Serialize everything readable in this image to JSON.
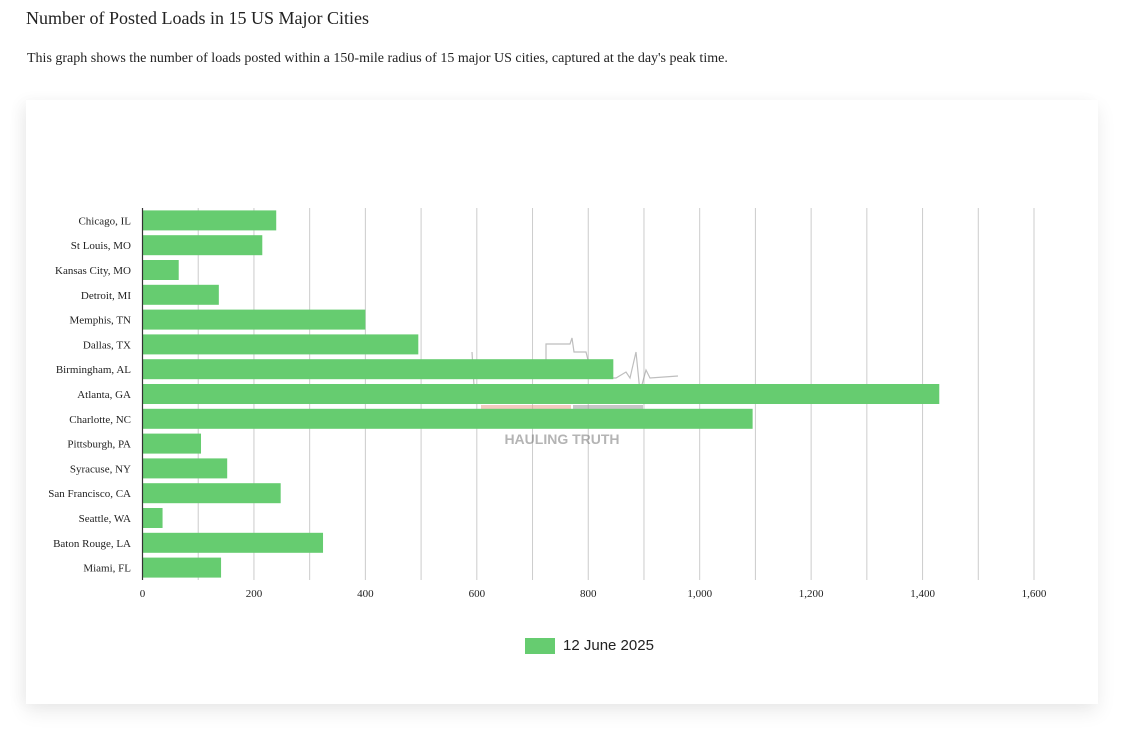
{
  "page": {
    "title": "Number of Posted Loads in 15 US Major Cities",
    "subtitle": "This graph shows the number of loads posted within a 150-mile radius of 15 major US cities, captured at the day's peak time."
  },
  "watermark": {
    "text": "HAULING TRUTH"
  },
  "chart_data": {
    "type": "bar",
    "orientation": "horizontal",
    "title": "",
    "xlabel": "",
    "ylabel": "",
    "categories": [
      "Chicago, IL",
      "St Louis, MO",
      "Kansas City, MO",
      "Detroit, MI",
      "Memphis, TN",
      "Dallas, TX",
      "Birmingham, AL",
      "Atlanta, GA",
      "Charlotte, NC",
      "Pittsburgh, PA",
      "Syracuse, NY",
      "San Francisco, CA",
      "Seattle, WA",
      "Baton Rouge, LA",
      "Miami, FL"
    ],
    "series": [
      {
        "name": "12 June 2025",
        "color": "#66cc70",
        "values": [
          240,
          215,
          65,
          137,
          400,
          495,
          845,
          1430,
          1095,
          105,
          152,
          248,
          36,
          324,
          141
        ]
      }
    ],
    "xlim": [
      0,
      1600
    ],
    "xticks": [
      0,
      200,
      400,
      600,
      800,
      1000,
      1200,
      1400,
      1600
    ],
    "xtick_labels": [
      "0",
      "200",
      "400",
      "600",
      "800",
      "1,000",
      "1,200",
      "1,400",
      "1,600"
    ],
    "grid": true,
    "legend": {
      "position": "bottom",
      "entries": [
        "12 June 2025"
      ]
    }
  }
}
